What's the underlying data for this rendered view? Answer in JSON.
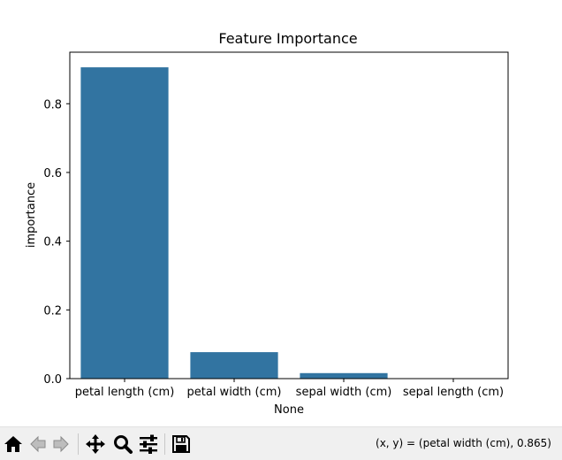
{
  "chart_data": {
    "type": "bar",
    "title": "Feature Importance",
    "xlabel": "None",
    "ylabel": "importance",
    "categories": [
      "petal length (cm)",
      "petal width (cm)",
      "sepal width (cm)",
      "sepal length (cm)"
    ],
    "values": [
      0.906,
      0.077,
      0.016,
      0.0
    ],
    "ylim": [
      0,
      0.95
    ],
    "yticks": [
      0.0,
      0.2,
      0.4,
      0.6,
      0.8
    ],
    "ytick_labels": [
      "0.0",
      "0.2",
      "0.4",
      "0.6",
      "0.8"
    ],
    "bar_color": "#3274a1",
    "grid": false,
    "legend": "none"
  },
  "toolbar": {
    "coordinates": "(x, y) = (petal width (cm), 0.865)",
    "buttons": [
      {
        "name": "home-button",
        "icon": "home-icon"
      },
      {
        "name": "back-button",
        "icon": "arrow-left-icon"
      },
      {
        "name": "forward-button",
        "icon": "arrow-right-icon"
      },
      {
        "name": "pan-button",
        "icon": "move-icon"
      },
      {
        "name": "zoom-button",
        "icon": "magnifier-icon"
      },
      {
        "name": "configure-subplots-button",
        "icon": "sliders-icon"
      },
      {
        "name": "save-button",
        "icon": "floppy-disk-icon"
      }
    ]
  }
}
